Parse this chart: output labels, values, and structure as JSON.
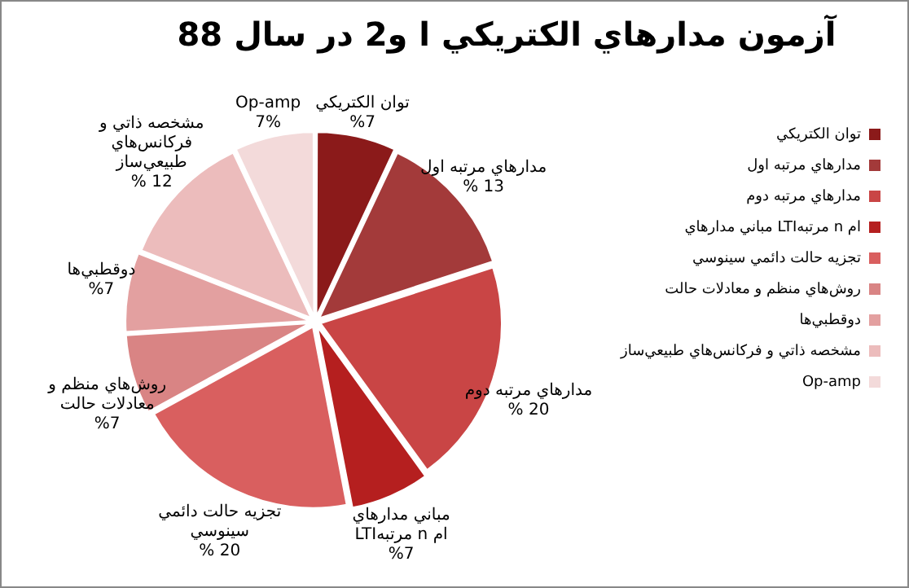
{
  "chart_data": {
    "type": "pie",
    "title": "آزمون مدارهاي الكتريكي ا و2 در سال 88",
    "categories": [
      "توان الكتريكي",
      "مدارهاي مرتبه اول",
      "مدارهاي مرتبه دوم",
      "مباني مدارهاي LTIمرتبه n ام",
      "تجزيه حالت دائمي سينوسي",
      "روش‌هاي منظم و معادلات حالت",
      "دوقطبي‌ها",
      "مشخصه ذاتي و فركانس‌هاي طبيعي‌ساز",
      "Op-amp"
    ],
    "values": [
      7,
      13,
      20,
      7,
      20,
      7,
      7,
      12,
      7
    ],
    "value_labels": [
      "%7",
      "% 13",
      "% 20",
      "%7",
      "% 20",
      "%7",
      "%7",
      "% 12",
      "7%"
    ],
    "colors": [
      "#8b1a1a",
      "#a33a3a",
      "#c94545",
      "#b51f1f",
      "#d95f5f",
      "#d98484",
      "#e3a0a0",
      "#ecbcbc",
      "#f3dada"
    ],
    "legend": "right"
  }
}
